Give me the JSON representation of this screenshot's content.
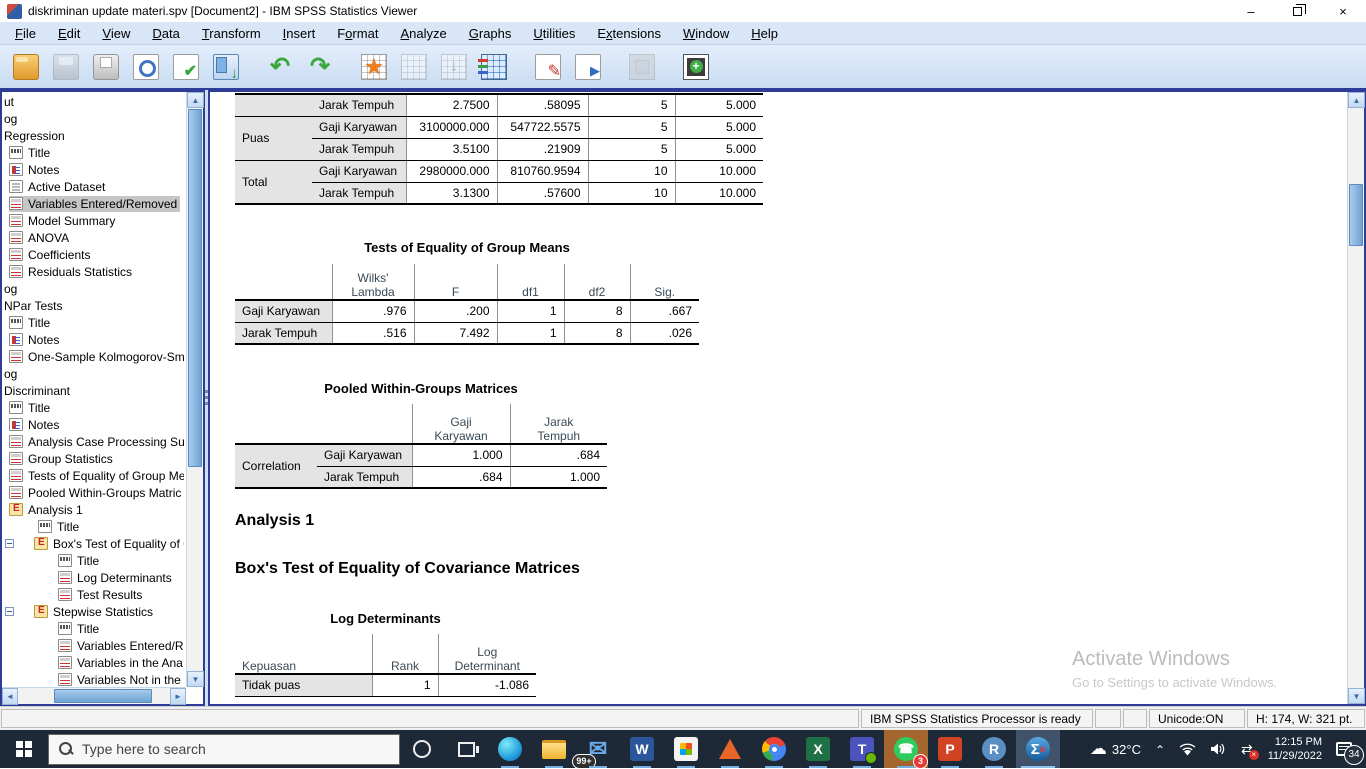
{
  "window": {
    "title": "diskriminan update materi.spv [Document2] - IBM SPSS Statistics Viewer"
  },
  "menu": {
    "items": [
      {
        "label": "File",
        "u": 0
      },
      {
        "label": "Edit",
        "u": 0
      },
      {
        "label": "View",
        "u": 0
      },
      {
        "label": "Data",
        "u": 0
      },
      {
        "label": "Transform",
        "u": 0
      },
      {
        "label": "Insert",
        "u": 0
      },
      {
        "label": "Format",
        "u": 1
      },
      {
        "label": "Analyze",
        "u": 0
      },
      {
        "label": "Graphs",
        "u": 0
      },
      {
        "label": "Utilities",
        "u": 0
      },
      {
        "label": "Extensions",
        "u": 1
      },
      {
        "label": "Window",
        "u": 0
      },
      {
        "label": "Help",
        "u": 0
      }
    ]
  },
  "toolbar": {
    "icons": [
      {
        "name": "open-file-icon",
        "cls": "t-open"
      },
      {
        "name": "save-icon",
        "cls": "t-save",
        "disabled": true
      },
      {
        "name": "print-icon",
        "cls": "t-print"
      },
      {
        "name": "print-preview-icon",
        "cls": "t-doc t-preview"
      },
      {
        "name": "export-icon",
        "cls": "t-doc t-export"
      },
      {
        "name": "recall-dialogs-icon",
        "cls": "t-recall"
      },
      {
        "name": "undo-icon",
        "cls": "t-undo",
        "glyph": "↶",
        "gap": true
      },
      {
        "name": "redo-icon",
        "cls": "t-redo",
        "glyph": "↷"
      },
      {
        "name": "goto-case-icon",
        "cls": "t-grid t-star",
        "gap": true
      },
      {
        "name": "goto-variable-icon",
        "cls": "t-grid",
        "disabled": true
      },
      {
        "name": "insert-variables-icon",
        "cls": "t-grid t-vardown",
        "disabled": true
      },
      {
        "name": "variable-sets-icon",
        "cls": "t-varsets"
      },
      {
        "name": "select-last-output-icon",
        "cls": "t-doc t-pencil",
        "gap": true
      },
      {
        "name": "designate-window-icon",
        "cls": "t-doc t-play"
      },
      {
        "name": "frame-icon",
        "cls": "t-frame",
        "disabled": true,
        "gap": true
      },
      {
        "name": "show-hide-icon",
        "cls": "t-showplus",
        "gap": true
      }
    ]
  },
  "sidebar": {
    "items": [
      {
        "label": "ut",
        "level": 0,
        "icon": "none"
      },
      {
        "label": "og",
        "level": 0,
        "icon": "none"
      },
      {
        "label": "Regression",
        "level": 0,
        "icon": "none"
      },
      {
        "label": "Title",
        "level": 1,
        "icon": "title"
      },
      {
        "label": "Notes",
        "level": 1,
        "icon": "notes"
      },
      {
        "label": "Active Dataset",
        "level": 1,
        "icon": "page"
      },
      {
        "label": "Variables Entered/Removed",
        "level": 1,
        "icon": "table",
        "selected": true
      },
      {
        "label": "Model Summary",
        "level": 1,
        "icon": "table"
      },
      {
        "label": "ANOVA",
        "level": 1,
        "icon": "table"
      },
      {
        "label": "Coefficients",
        "level": 1,
        "icon": "table"
      },
      {
        "label": "Residuals Statistics",
        "level": 1,
        "icon": "table"
      },
      {
        "label": "og",
        "level": 0,
        "icon": "none"
      },
      {
        "label": "NPar Tests",
        "level": 0,
        "icon": "none"
      },
      {
        "label": "Title",
        "level": 1,
        "icon": "title"
      },
      {
        "label": "Notes",
        "level": 1,
        "icon": "notes"
      },
      {
        "label": "One-Sample Kolmogorov-Sm",
        "level": 1,
        "icon": "table"
      },
      {
        "label": "og",
        "level": 0,
        "icon": "none"
      },
      {
        "label": "Discriminant",
        "level": 0,
        "icon": "none"
      },
      {
        "label": "Title",
        "level": 1,
        "icon": "title"
      },
      {
        "label": "Notes",
        "level": 1,
        "icon": "notes"
      },
      {
        "label": "Analysis Case Processing Su",
        "level": 1,
        "icon": "table"
      },
      {
        "label": "Group Statistics",
        "level": 1,
        "icon": "table"
      },
      {
        "label": "Tests of Equality of Group Me",
        "level": 1,
        "icon": "table"
      },
      {
        "label": "Pooled Within-Groups Matric",
        "level": 1,
        "icon": "table"
      },
      {
        "label": "Analysis 1",
        "level": 1,
        "icon": "heading"
      },
      {
        "label": "Title",
        "level": 2,
        "icon": "title"
      },
      {
        "label": "Box's Test of Equality of C",
        "level": 2,
        "icon": "heading",
        "expander": true
      },
      {
        "label": "Title",
        "level": 3,
        "icon": "title"
      },
      {
        "label": "Log Determinants",
        "level": 3,
        "icon": "table"
      },
      {
        "label": "Test Results",
        "level": 3,
        "icon": "table"
      },
      {
        "label": "Stepwise Statistics",
        "level": 2,
        "icon": "heading",
        "expander": true
      },
      {
        "label": "Title",
        "level": 3,
        "icon": "title"
      },
      {
        "label": "Variables Entered/R",
        "level": 3,
        "icon": "table"
      },
      {
        "label": "Variables in the Ana",
        "level": 3,
        "icon": "table"
      },
      {
        "label": "Variables Not in the",
        "level": 3,
        "icon": "table"
      }
    ]
  },
  "content": {
    "group_stats_partial": {
      "rows": [
        [
          "",
          "Jarak Tempuh",
          "2.7500",
          ".58095",
          "5",
          "5.000"
        ],
        [
          "Puas",
          "Gaji Karyawan",
          "3100000.000",
          "547722.5575",
          "5",
          "5.000"
        ],
        [
          "",
          "Jarak Tempuh",
          "3.5100",
          ".21909",
          "5",
          "5.000"
        ],
        [
          "Total",
          "Gaji Karyawan",
          "2980000.000",
          "810760.9594",
          "10",
          "10.000"
        ],
        [
          "",
          "Jarak Tempuh",
          "3.1300",
          ".57600",
          "10",
          "10.000"
        ]
      ]
    },
    "tests_table": {
      "title": "Tests of Equality of Group Means",
      "col_headers": [
        "Wilks'\nLambda",
        "F",
        "df1",
        "df2",
        "Sig."
      ],
      "rows": [
        [
          "Gaji Karyawan",
          ".976",
          ".200",
          "1",
          "8",
          ".667"
        ],
        [
          "Jarak Tempuh",
          ".516",
          "7.492",
          "1",
          "8",
          ".026"
        ]
      ]
    },
    "pooled_table": {
      "title": "Pooled Within-Groups Matrices",
      "col_headers": [
        "Gaji\nKaryawan",
        "Jarak\nTempuh"
      ],
      "rows": [
        [
          "Correlation",
          "Gaji Karyawan",
          "1.000",
          ".684"
        ],
        [
          "",
          "Jarak Tempuh",
          ".684",
          "1.000"
        ]
      ]
    },
    "heading1": "Analysis 1",
    "heading2": "Box's Test of Equality of Covariance Matrices",
    "logdet_table": {
      "title": "Log Determinants",
      "stub_header": "Kepuasan",
      "col_headers": [
        "Rank",
        "Log\nDeterminant"
      ],
      "rows": [
        [
          "Tidak puas",
          "1",
          "-1.086"
        ]
      ]
    }
  },
  "watermark": {
    "line1": "Activate Windows",
    "line2": "Go to Settings to activate Windows."
  },
  "status": {
    "message": "IBM SPSS Statistics Processor is ready",
    "unicode": "Unicode:ON",
    "dims": "H: 174, W: 321 pt."
  },
  "taskbar": {
    "search_placeholder": "Type here to search",
    "apps": [
      {
        "name": "edge"
      },
      {
        "name": "file-explorer"
      },
      {
        "name": "mail",
        "badge": "99+",
        "badge_style": "pill"
      },
      {
        "name": "word",
        "letter": "W"
      },
      {
        "name": "store"
      },
      {
        "name": "matlab"
      },
      {
        "name": "chrome"
      },
      {
        "name": "excel",
        "letter": "X"
      },
      {
        "name": "teams",
        "letter": "T"
      },
      {
        "name": "whatsapp",
        "badge": "3",
        "flash": true
      },
      {
        "name": "powerpoint",
        "letter": "P"
      },
      {
        "name": "r",
        "letter": "R"
      },
      {
        "name": "spss",
        "letter": "Σ",
        "active": true
      }
    ],
    "tray": {
      "temperature": "32°C",
      "time": "12:15 PM",
      "date": "11/29/2022",
      "notif_count": "34"
    }
  }
}
